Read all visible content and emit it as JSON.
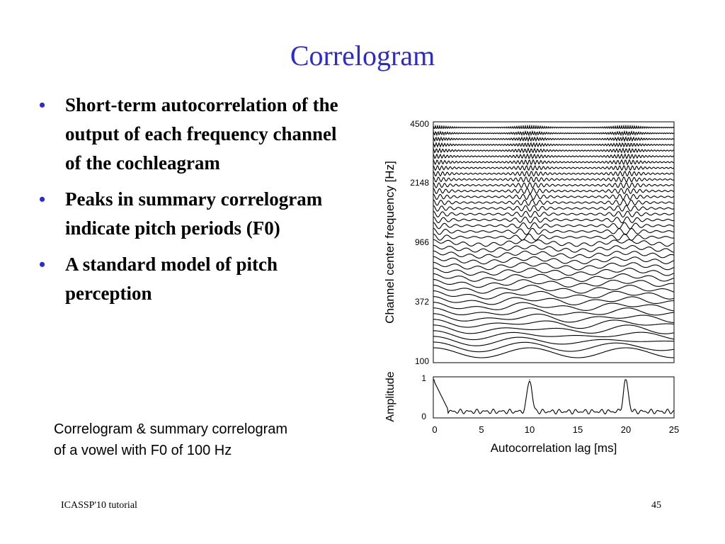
{
  "slide": {
    "title": "Correlogram",
    "bullets": [
      "Short-term autocorrelation of the output of each frequency channel of the cochleagram",
      "Peaks in summary correlogram indicate pitch periods (F0)",
      "A standard model of pitch perception"
    ],
    "caption_line1": "Correlogram & summary correlogram",
    "caption_line2": "of a vowel with F0 of 100 Hz",
    "footer_left": "ICASSP'10 tutorial",
    "footer_right": "45",
    "bullet_color": "#2b2bd0",
    "title_color": "#2b2bd0"
  },
  "chart_data": [
    {
      "type": "line",
      "title": "",
      "xlabel": "",
      "ylabel": "Channel center frequency [Hz]",
      "y_tick_labels": [
        "4500",
        "2148",
        "966",
        "372",
        "100"
      ],
      "xlim": [
        0,
        25
      ],
      "channel_count": 40,
      "period_ms": 10
    },
    {
      "type": "line",
      "title": "",
      "xlabel": "Autocorrelation lag [ms]",
      "ylabel": "Amplitude",
      "x_tick_labels": [
        "0",
        "5",
        "10",
        "15",
        "20",
        "25"
      ],
      "y_tick_labels": [
        "1",
        "0"
      ],
      "xlim": [
        0,
        25
      ],
      "ylim": [
        0,
        1
      ],
      "peaks": [
        {
          "x": 0,
          "y": 1
        },
        {
          "x": 10,
          "y": 1
        },
        {
          "x": 20,
          "y": 1
        }
      ],
      "baseline": 0.1
    }
  ]
}
